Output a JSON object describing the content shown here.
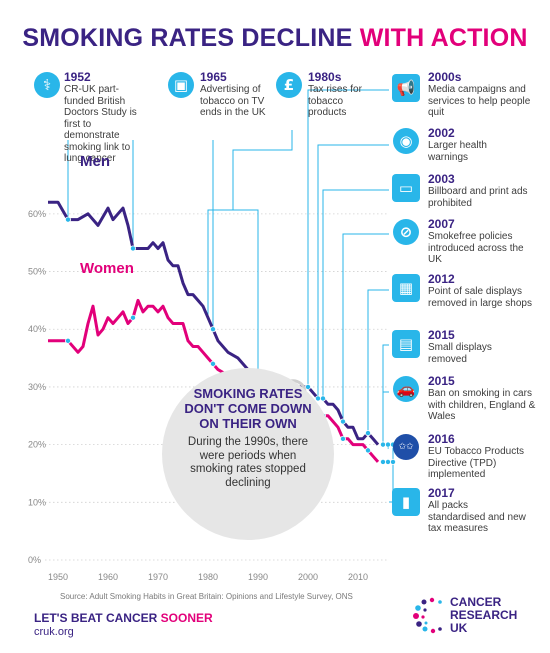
{
  "title": {
    "part1": "SMOKING RATES DECLINE",
    "part2": "WITH ACTION"
  },
  "events": [
    {
      "year": "1952",
      "text": "CR-UK part-funded British Doctors Study is first to demonstrate smoking link to lung cancer",
      "icon": "stethoscope-icon"
    },
    {
      "year": "1965",
      "text": "Advertising of tobacco on TV ends in the UK",
      "icon": "tv-icon"
    },
    {
      "year": "1980s",
      "text": "Tax rises for tobacco products",
      "icon": "pound-icon"
    },
    {
      "year": "2000s",
      "text": "Media campaigns and services to help people quit",
      "icon": "megaphone-icon"
    },
    {
      "year": "2002",
      "text": "Larger health warnings",
      "icon": "eye-icon"
    },
    {
      "year": "2003",
      "text": "Billboard and print ads prohibited",
      "icon": "billboard-icon"
    },
    {
      "year": "2007",
      "text": "Smokefree policies introduced across the UK",
      "icon": "no-smoking-icon"
    },
    {
      "year": "2012",
      "text": "Point of sale displays removed in large shops",
      "icon": "display-icon"
    },
    {
      "year": "2015",
      "text": "Small displays removed",
      "icon": "small-display-icon"
    },
    {
      "year": "2015",
      "text": "Ban on smoking in cars with children, England & Wales",
      "icon": "car-icon"
    },
    {
      "year": "2016",
      "text": "EU Tobacco Products Directive (TPD) implemented",
      "icon": "eu-flag-icon"
    },
    {
      "year": "2017",
      "text": "All packs standardised and new tax measures",
      "icon": "cigarette-pack-icon"
    }
  ],
  "bubble": {
    "heading": "SMOKING RATES DON'T COME DOWN ON THEIR OWN",
    "body": "During the 1990s, there were periods when smoking rates stopped declining"
  },
  "source": "Source: Adult Smoking Habits in Great Britain: Opinions and Lifestyle Survey, ONS",
  "footer": {
    "slogan_a": "LET'S BEAT CANCER",
    "slogan_b": "SOONER",
    "url": "cruk.org"
  },
  "brand": {
    "line1": "CANCER",
    "line2": "RESEARCH",
    "line3": "UK"
  },
  "colors": {
    "men": "#3a2383",
    "women": "#e2007a",
    "accent": "#29b6e9",
    "bubble": "#e6e6e6"
  },
  "chart_data": {
    "type": "line",
    "x_ticks": [
      1950,
      1960,
      1970,
      1980,
      1990,
      2000,
      2010
    ],
    "y_ticks": [
      "0%",
      "10%",
      "20%",
      "30%",
      "40%",
      "50%",
      "60%"
    ],
    "xlim": [
      1948,
      2015
    ],
    "ylim": [
      0,
      65
    ],
    "series": [
      {
        "name": "Men",
        "color": "#3a2383",
        "x": [
          1948,
          1950,
          1952,
          1954,
          1956,
          1958,
          1960,
          1961,
          1962,
          1963,
          1964,
          1965,
          1966,
          1967,
          1968,
          1969,
          1970,
          1971,
          1972,
          1973,
          1974,
          1975,
          1976,
          1977,
          1978,
          1979,
          1980,
          1982,
          1984,
          1986,
          1988,
          1990,
          1992,
          1994,
          1996,
          1998,
          2000,
          2001,
          2002,
          2003,
          2004,
          2005,
          2006,
          2007,
          2008,
          2009,
          2010,
          2011,
          2012,
          2013,
          2014
        ],
        "y": [
          62,
          62,
          59,
          59,
          60,
          58,
          61,
          59,
          60,
          61,
          58,
          54,
          54,
          54,
          54,
          55,
          54,
          55,
          52,
          51,
          51,
          48,
          46,
          46,
          45,
          44,
          42,
          38,
          36,
          35,
          33,
          31,
          29,
          28,
          29,
          30,
          30,
          29,
          28,
          28,
          27,
          27,
          26,
          24,
          23,
          23,
          21,
          21,
          22,
          21,
          20
        ]
      },
      {
        "name": "Women",
        "color": "#e2007a",
        "x": [
          1948,
          1950,
          1952,
          1954,
          1955,
          1956,
          1957,
          1958,
          1959,
          1960,
          1961,
          1962,
          1963,
          1964,
          1965,
          1966,
          1967,
          1968,
          1969,
          1970,
          1971,
          1972,
          1973,
          1974,
          1975,
          1976,
          1977,
          1978,
          1979,
          1980,
          1982,
          1984,
          1986,
          1988,
          1990,
          1992,
          1994,
          1996,
          1998,
          2000,
          2001,
          2002,
          2003,
          2004,
          2005,
          2006,
          2007,
          2008,
          2009,
          2010,
          2011,
          2012,
          2013,
          2014
        ],
        "y": [
          38,
          38,
          38,
          36,
          37,
          41,
          44,
          39,
          40,
          42,
          41,
          42,
          43,
          41,
          42,
          45,
          43,
          44,
          44,
          43,
          44,
          42,
          41,
          41,
          41,
          38,
          37,
          37,
          36,
          35,
          33,
          32,
          31,
          30,
          29,
          28,
          27,
          27,
          26,
          26,
          26,
          25,
          25,
          25,
          24,
          23,
          21,
          21,
          20,
          20,
          20,
          19,
          18,
          17
        ]
      }
    ],
    "event_years": [
      1952,
      1965,
      1981,
      2000,
      2002,
      2003,
      2007,
      2012,
      2015,
      2015,
      2016,
      2017
    ]
  }
}
